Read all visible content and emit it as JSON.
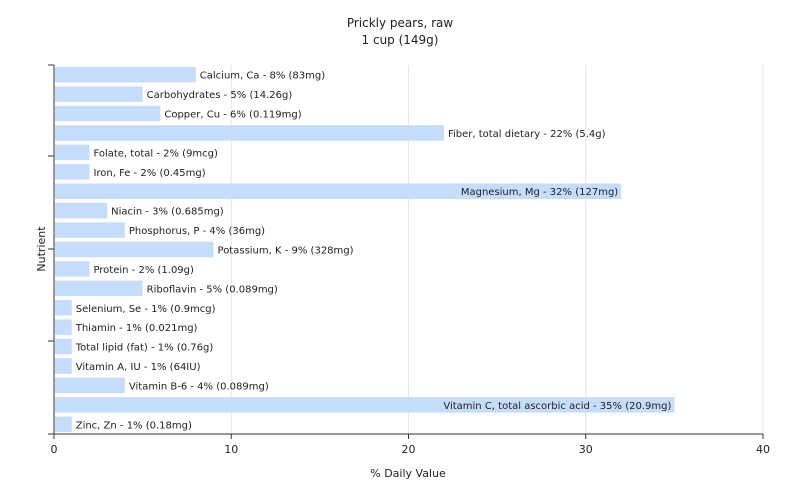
{
  "chart_data": {
    "type": "bar",
    "orientation": "horizontal",
    "title": "Prickly pears, raw",
    "subtitle": "1 cup (149g)",
    "xlabel": "% Daily Value",
    "ylabel": "Nutrient",
    "xlim": [
      0,
      40
    ],
    "xticks": [
      "0",
      "10",
      "20",
      "30",
      "40"
    ],
    "grid": true,
    "bar_color": "#c6dcfb",
    "categories": [
      "Calcium, Ca",
      "Carbohydrates",
      "Copper, Cu",
      "Fiber, total dietary",
      "Folate, total",
      "Iron, Fe",
      "Magnesium, Mg",
      "Niacin",
      "Phosphorus, P",
      "Potassium, K",
      "Protein",
      "Riboflavin",
      "Selenium, Se",
      "Thiamin",
      "Total lipid (fat)",
      "Vitamin A, IU",
      "Vitamin B-6",
      "Vitamin C, total ascorbic acid",
      "Zinc, Zn"
    ],
    "values": [
      8,
      5,
      6,
      22,
      2,
      2,
      32,
      3,
      4,
      9,
      2,
      5,
      1,
      1,
      1,
      1,
      4,
      35,
      1
    ],
    "labels": [
      "Calcium, Ca - 8% (83mg)",
      "Carbohydrates - 5% (14.26g)",
      "Copper, Cu - 6% (0.119mg)",
      "Fiber, total dietary - 22% (5.4g)",
      "Folate, total - 2% (9mcg)",
      "Iron, Fe - 2% (0.45mg)",
      "Magnesium, Mg - 32% (127mg)",
      "Niacin - 3% (0.685mg)",
      "Phosphorus, P - 4% (36mg)",
      "Potassium, K - 9% (328mg)",
      "Protein - 2% (1.09g)",
      "Riboflavin - 5% (0.089mg)",
      "Selenium, Se - 1% (0.9mcg)",
      "Thiamin - 1% (0.021mg)",
      "Total lipid (fat) - 1% (0.76g)",
      "Vitamin A, IU - 1% (64IU)",
      "Vitamin B-6 - 4% (0.089mg)",
      "Vitamin C, total ascorbic acid - 35% (20.9mg)",
      "Zinc, Zn - 1% (0.18mg)"
    ]
  }
}
